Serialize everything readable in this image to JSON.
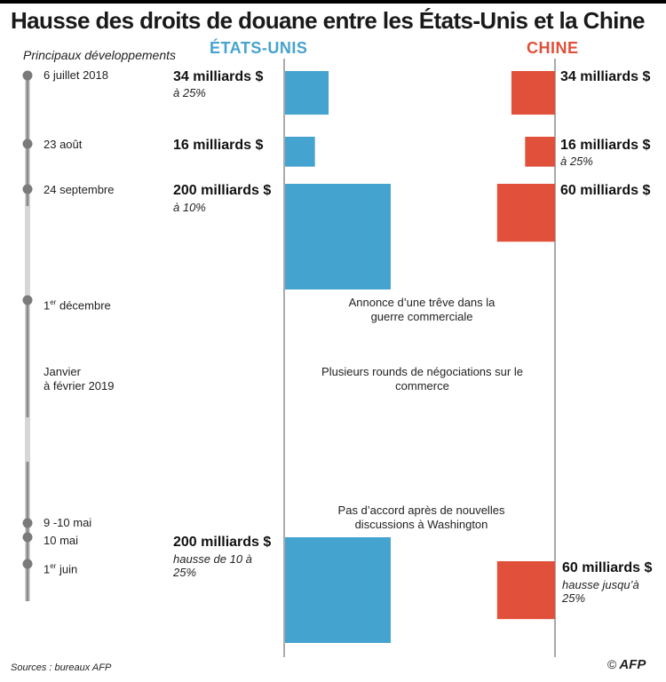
{
  "title": "Hausse des droits de douane entre les États-Unis et la Chine",
  "subtitle": "Principaux développements",
  "columns": {
    "us": "ÉTATS-UNIS",
    "china": "CHINE"
  },
  "colors": {
    "us": "#45a3cf",
    "china": "#e0503a",
    "timeline": "#8c8c8c",
    "axis": "#555555"
  },
  "events": [
    {
      "date": "6 juillet 2018"
    },
    {
      "date": "23 août"
    },
    {
      "date": "24 septembre"
    },
    {
      "date": "1",
      "date_sup": "er",
      "date_rest": " décembre",
      "note": "Annonce d’une trêve dans la guerre commerciale"
    },
    {
      "date": "Janvier",
      "date_line2": "à février 2019",
      "note": "Plusieurs rounds de négociations sur  le commerce"
    },
    {
      "date": "9 -10 mai",
      "note": "Pas d’accord après de nouvelles discussions à Washington"
    },
    {
      "date": "10 mai"
    },
    {
      "date": "1",
      "date_sup": "er",
      "date_rest": " juin"
    }
  ],
  "chart_data": {
    "type": "bar",
    "title": "Hausse des droits de douane entre les États-Unis et la Chine",
    "subtitle": "Principaux développements",
    "unit": "milliards $",
    "series": [
      {
        "name": "ÉTATS-UNIS",
        "points": [
          {
            "date": "6 juillet 2018",
            "value": 34,
            "label": "34 milliards $",
            "rate": "à 25%"
          },
          {
            "date": "23 août",
            "value": 16,
            "label": "16 milliards $",
            "rate": ""
          },
          {
            "date": "24 septembre",
            "value": 200,
            "label": "200 milliards $",
            "rate": "à 10%"
          },
          {
            "date": "10 mai",
            "value": 200,
            "label": "200 milliards $",
            "rate": "hausse de 10 à 25%"
          }
        ]
      },
      {
        "name": "CHINE",
        "points": [
          {
            "date": "6 juillet 2018",
            "value": 34,
            "label": "34 milliards $",
            "rate": ""
          },
          {
            "date": "23 août",
            "value": 16,
            "label": "16 milliards $",
            "rate": "à 25%"
          },
          {
            "date": "24 septembre",
            "value": 60,
            "label": "60 milliards $",
            "rate": ""
          },
          {
            "date": "1er juin",
            "value": 60,
            "label": "60 milliards $",
            "rate": "hausse jusqu’à 25%"
          }
        ]
      }
    ]
  },
  "footer": {
    "source": "Sources : bureaux AFP",
    "copyright": "©",
    "brand": "AFP"
  }
}
